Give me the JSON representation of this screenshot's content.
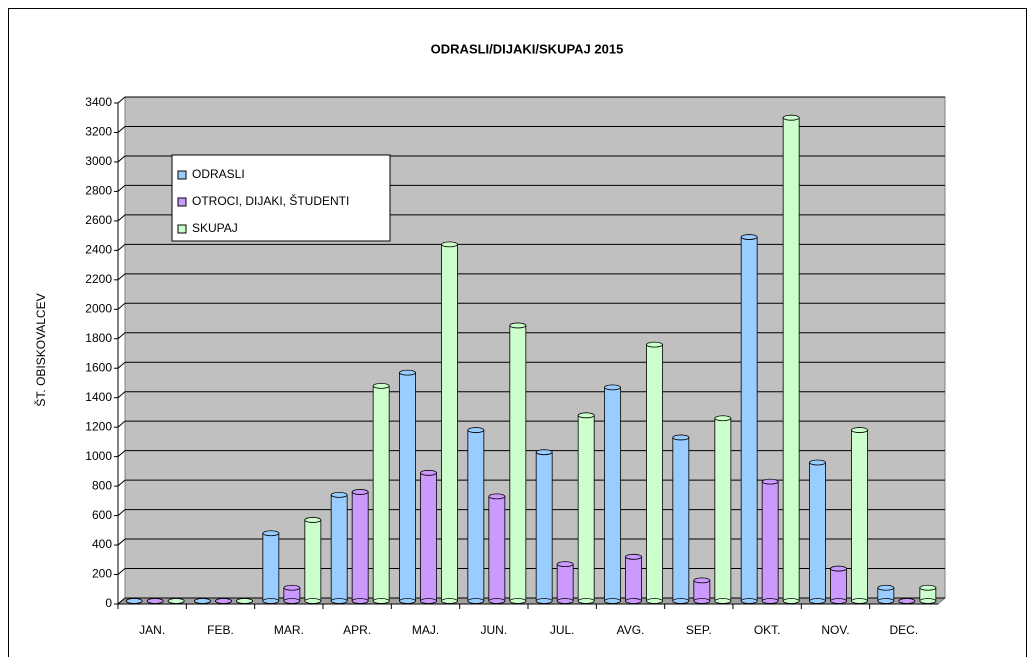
{
  "chart_data": {
    "type": "bar",
    "title": "ODRASLI/DIJAKI/SKUPAJ 2015",
    "y_label": "ŠT. OBISKOVALCEV",
    "categories": [
      "JAN.",
      "FEB.",
      "MAR.",
      "APR.",
      "MAJ.",
      "JUN.",
      "JUL.",
      "AVG.",
      "SEP.",
      "OKT.",
      "NOV.",
      "DEC."
    ],
    "series": [
      {
        "name": "ODRASLI",
        "color": "#99ccff",
        "values": [
          0,
          0,
          460,
          720,
          1550,
          1160,
          1010,
          1450,
          1110,
          2470,
          940,
          90
        ]
      },
      {
        "name": "OTROCI, DIJAKI, ŠTUDENTI",
        "color": "#cc99ff",
        "values": [
          0,
          0,
          90,
          740,
          870,
          710,
          250,
          300,
          140,
          810,
          220,
          0
        ]
      },
      {
        "name": "SKUPAJ",
        "color": "#ccffcc",
        "values": [
          0,
          0,
          550,
          1460,
          2420,
          1870,
          1260,
          1740,
          1240,
          3280,
          1160,
          90
        ]
      }
    ],
    "ylim": [
      0,
      3400
    ],
    "yticks": [
      0,
      200,
      400,
      600,
      800,
      1000,
      1200,
      1400,
      1600,
      1800,
      2000,
      2200,
      2400,
      2600,
      2800,
      3000,
      3200,
      3400
    ],
    "grid": true,
    "legend": "upper left"
  }
}
